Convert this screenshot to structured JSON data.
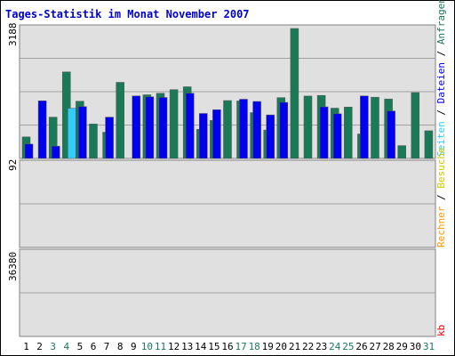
{
  "chart_data": {
    "type": "bar",
    "title": "Tages-Statistik im Monat November 2007",
    "categories": [
      "1",
      "2",
      "3",
      "4",
      "5",
      "6",
      "7",
      "8",
      "9",
      "10",
      "11",
      "12",
      "13",
      "14",
      "15",
      "16",
      "17",
      "18",
      "19",
      "20",
      "21",
      "22",
      "23",
      "24",
      "25",
      "26",
      "27",
      "28",
      "29",
      "30",
      "31"
    ],
    "weekend_days": [
      "3",
      "4",
      "10",
      "11",
      "17",
      "18",
      "24",
      "25",
      "31"
    ],
    "panels": {
      "top": {
        "max_label": "3188",
        "ymax": 3188,
        "series": [
          {
            "name": "Anfragen",
            "color": "#1a7a58",
            "values": [
              528,
              0,
              1014,
              2123,
              1403,
              845,
              645,
              1867,
              0,
              1562,
              1599,
              1687,
              1758,
              714,
              932,
              1420,
              1410,
              1125,
              697,
              1492,
              3188,
              1531,
              1546,
              1233,
              1259,
              601,
              1502,
              1458,
              314,
              1616,
              680
            ]
          },
          {
            "name": "Dateien",
            "color": "#0000ee",
            "values": [
              352,
              1412,
              299,
              0,
              1271,
              0,
              1014,
              0,
              1532,
              1512,
              1495,
              0,
              1598,
              1102,
              1195,
              0,
              1452,
              1398,
              1067,
              1375,
              0,
              0,
              1265,
              1095,
              0,
              1532,
              0,
              1164,
              0,
              0,
              0
            ]
          },
          {
            "name": "Seiten",
            "color": "#33ccff",
            "values": [
              0,
              0,
              0,
              1232,
              0,
              0,
              0,
              0,
              0,
              0,
              0,
              0,
              0,
              0,
              0,
              0,
              0,
              0,
              0,
              0,
              0,
              0,
              0,
              0,
              0,
              0,
              0,
              0,
              0,
              0,
              0
            ]
          }
        ]
      },
      "middle": {
        "max_label": "92",
        "ymax": 92,
        "series": [
          {
            "name": "Besuche",
            "color": "#ff9900",
            "values": [
              0,
              0,
              0,
              0,
              0,
              0,
              0,
              0,
              0,
              0,
              0,
              0,
              0,
              0,
              0,
              0,
              0,
              0,
              0,
              0,
              0,
              0,
              0,
              0,
              0,
              0,
              0,
              0,
              0,
              0,
              0
            ]
          },
          {
            "name": "Rechner",
            "color": "#ffff00",
            "values": [
              0,
              0,
              0,
              0,
              0,
              0,
              0,
              0,
              0,
              0,
              0,
              0,
              0,
              0,
              0,
              0,
              0,
              0,
              0,
              0,
              0,
              0,
              0,
              0,
              0,
              0,
              0,
              0,
              0,
              0,
              0
            ]
          }
        ]
      },
      "bottom": {
        "max_label": "36380",
        "ymax": 36380,
        "series": [
          {
            "name": "kb",
            "color": "#ff0000",
            "values": [
              0,
              0,
              0,
              0,
              0,
              0,
              0,
              0,
              0,
              0,
              0,
              0,
              0,
              0,
              0,
              0,
              0,
              0,
              0,
              0,
              0,
              0,
              0,
              0,
              0,
              0,
              0,
              0,
              0,
              0,
              0
            ]
          }
        ]
      }
    },
    "legend_right": {
      "top": [
        "Anfragen",
        "/",
        "Dateien",
        "/",
        "Seiten"
      ],
      "middle": [
        "Besuche",
        "/",
        "Rechner"
      ],
      "bottom": [
        "kb"
      ]
    }
  }
}
